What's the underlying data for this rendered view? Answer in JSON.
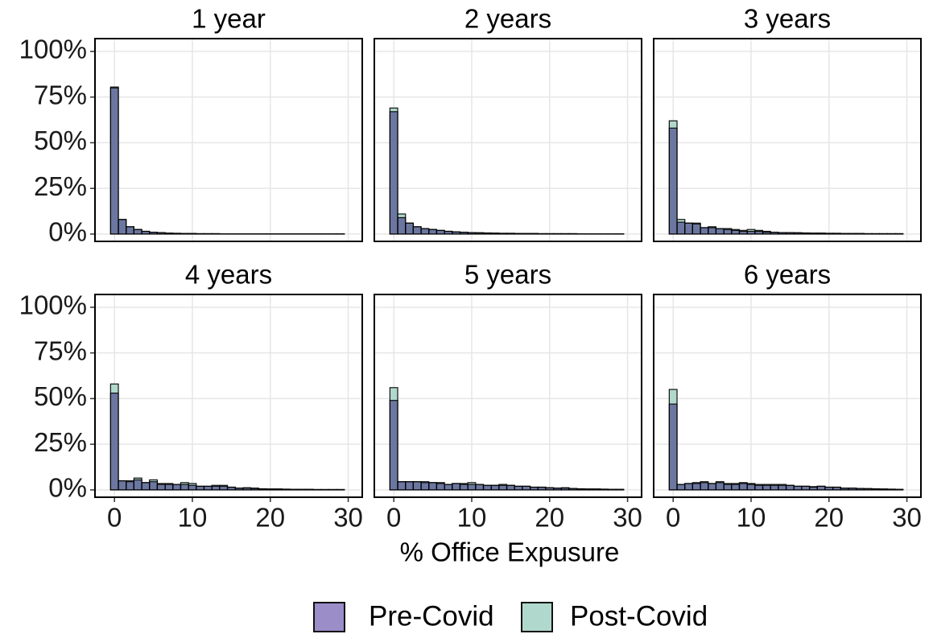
{
  "chart_data": [
    {
      "type": "histogram",
      "title": "1 year",
      "bins": [
        -0.5,
        0.5,
        1.5,
        2.5,
        3.5,
        4.5,
        5.5,
        6.5,
        7.5,
        8.5,
        9.5,
        10.5,
        11.5,
        12.5,
        13.5,
        14.5,
        15.5,
        16.5,
        17.5,
        18.5,
        19.5,
        20.5,
        21.5,
        22.5,
        23.5,
        24.5,
        25.5,
        26.5,
        27.5,
        28.5,
        29.5
      ],
      "series": [
        {
          "name": "Pre-Covid",
          "color": "#9b8dc8",
          "values": [
            80,
            8,
            4,
            2.5,
            1.5,
            1,
            0.8,
            0.5,
            0.4,
            0.3,
            0.3,
            0.2,
            0.2,
            0.2,
            0.1,
            0.1,
            0.1,
            0.1,
            0.1,
            0.1,
            0.1,
            0.1,
            0.1,
            0.1,
            0.1,
            0.1,
            0.1,
            0.1,
            0.1,
            0.1
          ]
        },
        {
          "name": "Post-Covid",
          "color": "#b0d8cc",
          "values": [
            80.5,
            8,
            4,
            2.5,
            1.5,
            1,
            0.8,
            0.5,
            0.4,
            0.3,
            0.3,
            0.2,
            0.2,
            0.2,
            0.1,
            0.1,
            0.1,
            0.1,
            0.1,
            0.1,
            0.1,
            0.1,
            0.1,
            0.1,
            0.1,
            0.1,
            0.1,
            0.1,
            0.1,
            0.1
          ]
        }
      ],
      "xlim": [
        -2.5,
        31.8
      ],
      "ylim": [
        -4,
        107
      ],
      "xticks": [
        0,
        10,
        20,
        30
      ],
      "yticks": [
        {
          "value": 0,
          "label": "0%"
        },
        {
          "value": 25,
          "label": "25%"
        },
        {
          "value": 50,
          "label": "50%"
        },
        {
          "value": 75,
          "label": "75%"
        },
        {
          "value": 100,
          "label": "100%"
        }
      ],
      "grid": true
    },
    {
      "type": "histogram",
      "title": "2 years",
      "bins": [
        -0.5,
        0.5,
        1.5,
        2.5,
        3.5,
        4.5,
        5.5,
        6.5,
        7.5,
        8.5,
        9.5,
        10.5,
        11.5,
        12.5,
        13.5,
        14.5,
        15.5,
        16.5,
        17.5,
        18.5,
        19.5,
        20.5,
        21.5,
        22.5,
        23.5,
        24.5,
        25.5,
        26.5,
        27.5,
        28.5,
        29.5
      ],
      "series": [
        {
          "name": "Pre-Covid",
          "color": "#9b8dc8",
          "values": [
            67,
            9,
            6,
            4,
            3,
            2.5,
            2,
            1.5,
            1.2,
            1,
            0.8,
            0.7,
            0.6,
            0.5,
            0.4,
            0.4,
            0.3,
            0.3,
            0.3,
            0.2,
            0.2,
            0.2,
            0.2,
            0.2,
            0.1,
            0.1,
            0.1,
            0.1,
            0.1,
            0.1
          ]
        },
        {
          "name": "Post-Covid",
          "color": "#b0d8cc",
          "values": [
            69,
            11,
            6,
            4,
            3,
            2.5,
            2,
            1.5,
            1.2,
            1,
            0.8,
            0.7,
            0.6,
            0.5,
            0.4,
            0.4,
            0.3,
            0.3,
            0.3,
            0.2,
            0.2,
            0.2,
            0.2,
            0.2,
            0.1,
            0.1,
            0.1,
            0.1,
            0.1,
            0.1
          ]
        }
      ],
      "xlim": [
        -2.5,
        31.8
      ],
      "ylim": [
        -4,
        107
      ],
      "xticks": [
        0,
        10,
        20,
        30
      ],
      "yticks": [
        {
          "value": 0,
          "label": "0%"
        },
        {
          "value": 25,
          "label": "25%"
        },
        {
          "value": 50,
          "label": "50%"
        },
        {
          "value": 75,
          "label": "75%"
        },
        {
          "value": 100,
          "label": "100%"
        }
      ],
      "grid": true
    },
    {
      "type": "histogram",
      "title": "3 years",
      "bins": [
        -0.5,
        0.5,
        1.5,
        2.5,
        3.5,
        4.5,
        5.5,
        6.5,
        7.5,
        8.5,
        9.5,
        10.5,
        11.5,
        12.5,
        13.5,
        14.5,
        15.5,
        16.5,
        17.5,
        18.5,
        19.5,
        20.5,
        21.5,
        22.5,
        23.5,
        24.5,
        25.5,
        26.5,
        27.5,
        28.5,
        29.5
      ],
      "series": [
        {
          "name": "Pre-Covid",
          "color": "#9b8dc8",
          "values": [
            58,
            6.5,
            6,
            5.5,
            3.5,
            3.5,
            3,
            2.5,
            2,
            1.5,
            1.5,
            1.5,
            1,
            1,
            0.8,
            0.8,
            0.7,
            0.6,
            0.5,
            0.5,
            0.4,
            0.4,
            0.3,
            0.3,
            0.3,
            0.2,
            0.2,
            0.2,
            0.2,
            0.2
          ]
        },
        {
          "name": "Post-Covid",
          "color": "#b0d8cc",
          "values": [
            62,
            8,
            6,
            6,
            3.5,
            4,
            3,
            3,
            2.5,
            2,
            2.5,
            2,
            1.5,
            1,
            0.8,
            0.8,
            0.7,
            0.6,
            0.5,
            0.5,
            0.4,
            0.4,
            0.3,
            0.3,
            0.3,
            0.2,
            0.2,
            0.2,
            0.2,
            0.2
          ]
        }
      ],
      "xlim": [
        -2.5,
        31.8
      ],
      "ylim": [
        -4,
        107
      ],
      "xticks": [
        0,
        10,
        20,
        30
      ],
      "yticks": [
        {
          "value": 0,
          "label": "0%"
        },
        {
          "value": 25,
          "label": "25%"
        },
        {
          "value": 50,
          "label": "50%"
        },
        {
          "value": 75,
          "label": "75%"
        },
        {
          "value": 100,
          "label": "100%"
        }
      ],
      "grid": true
    },
    {
      "type": "histogram",
      "title": "4 years",
      "bins": [
        -0.5,
        0.5,
        1.5,
        2.5,
        3.5,
        4.5,
        5.5,
        6.5,
        7.5,
        8.5,
        9.5,
        10.5,
        11.5,
        12.5,
        13.5,
        14.5,
        15.5,
        16.5,
        17.5,
        18.5,
        19.5,
        20.5,
        21.5,
        22.5,
        23.5,
        24.5,
        25.5,
        26.5,
        27.5,
        28.5,
        29.5
      ],
      "series": [
        {
          "name": "Pre-Covid",
          "color": "#9b8dc8",
          "values": [
            53,
            5,
            4.5,
            5.5,
            4,
            4.5,
            3,
            3,
            3,
            3,
            2.5,
            2,
            2,
            2,
            2,
            1.5,
            1,
            1,
            0.8,
            0.6,
            0.5,
            0.5,
            0.4,
            0.3,
            0.3,
            0.3,
            0.2,
            0.2,
            0.2,
            0.2
          ]
        },
        {
          "name": "Post-Covid",
          "color": "#b0d8cc",
          "values": [
            58,
            5,
            5,
            6.5,
            4,
            5.5,
            3.5,
            3.5,
            3,
            4,
            3.5,
            2,
            2,
            2.5,
            2.5,
            1.5,
            1,
            1.2,
            1,
            0.6,
            0.5,
            0.5,
            0.4,
            0.3,
            0.3,
            0.3,
            0.2,
            0.2,
            0.2,
            0.2
          ]
        }
      ],
      "xlim": [
        -2.5,
        31.8
      ],
      "ylim": [
        -4,
        107
      ],
      "xticks": [
        0,
        10,
        20,
        30
      ],
      "yticks": [
        {
          "value": 0,
          "label": "0%"
        },
        {
          "value": 25,
          "label": "25%"
        },
        {
          "value": 50,
          "label": "50%"
        },
        {
          "value": 75,
          "label": "75%"
        },
        {
          "value": 100,
          "label": "100%"
        }
      ],
      "grid": true
    },
    {
      "type": "histogram",
      "title": "5 years",
      "bins": [
        -0.5,
        0.5,
        1.5,
        2.5,
        3.5,
        4.5,
        5.5,
        6.5,
        7.5,
        8.5,
        9.5,
        10.5,
        11.5,
        12.5,
        13.5,
        14.5,
        15.5,
        16.5,
        17.5,
        18.5,
        19.5,
        20.5,
        21.5,
        22.5,
        23.5,
        24.5,
        25.5,
        26.5,
        27.5,
        28.5,
        29.5
      ],
      "series": [
        {
          "name": "Pre-Covid",
          "color": "#9b8dc8",
          "values": [
            49,
            4.5,
            4.5,
            4.5,
            4,
            4,
            3.5,
            3,
            3.5,
            3,
            3,
            3,
            2.5,
            2.5,
            2.5,
            2.5,
            2,
            2,
            1.5,
            1.5,
            1.2,
            1,
            1,
            0.8,
            0.6,
            0.5,
            0.5,
            0.4,
            0.3,
            0.3
          ]
        },
        {
          "name": "Post-Covid",
          "color": "#b0d8cc",
          "values": [
            56,
            4.5,
            4.5,
            4.5,
            4.5,
            4,
            4,
            3,
            3.5,
            3.5,
            4,
            3,
            2.5,
            2.5,
            3,
            2.5,
            2,
            2,
            1.5,
            1.5,
            1.2,
            1,
            1.2,
            0.8,
            0.6,
            0.5,
            0.5,
            0.4,
            0.3,
            0.3
          ]
        }
      ],
      "xlim": [
        -2.5,
        31.8
      ],
      "ylim": [
        -4,
        107
      ],
      "xticks": [
        0,
        10,
        20,
        30
      ],
      "yticks": [
        {
          "value": 0,
          "label": "0%"
        },
        {
          "value": 25,
          "label": "25%"
        },
        {
          "value": 50,
          "label": "50%"
        },
        {
          "value": 75,
          "label": "75%"
        },
        {
          "value": 100,
          "label": "100%"
        }
      ],
      "grid": true
    },
    {
      "type": "histogram",
      "title": "6 years",
      "bins": [
        -0.5,
        0.5,
        1.5,
        2.5,
        3.5,
        4.5,
        5.5,
        6.5,
        7.5,
        8.5,
        9.5,
        10.5,
        11.5,
        12.5,
        13.5,
        14.5,
        15.5,
        16.5,
        17.5,
        18.5,
        19.5,
        20.5,
        21.5,
        22.5,
        23.5,
        24.5,
        25.5,
        26.5,
        27.5,
        28.5,
        29.5
      ],
      "series": [
        {
          "name": "Pre-Covid",
          "color": "#9b8dc8",
          "values": [
            47,
            3,
            3.5,
            3.5,
            4,
            3.5,
            4,
            3,
            3,
            3.5,
            3,
            2.5,
            2.5,
            2.5,
            2.5,
            2.5,
            2,
            2,
            1.5,
            2,
            1.5,
            1.5,
            1,
            1,
            0.8,
            0.7,
            0.6,
            0.5,
            0.4,
            0.3
          ]
        },
        {
          "name": "Post-Covid",
          "color": "#b0d8cc",
          "values": [
            55,
            3,
            3.5,
            4,
            4.5,
            3.5,
            4.5,
            3.5,
            3.5,
            4,
            3.5,
            3,
            3,
            3,
            3,
            2.5,
            2,
            2,
            1.8,
            2,
            1.5,
            1.5,
            1,
            1,
            0.8,
            0.7,
            0.6,
            0.5,
            0.4,
            0.3
          ]
        }
      ],
      "xlim": [
        -2.5,
        31.8
      ],
      "ylim": [
        -4,
        107
      ],
      "xticks": [
        0,
        10,
        20,
        30
      ],
      "yticks": [
        {
          "value": 0,
          "label": "0%"
        },
        {
          "value": 25,
          "label": "25%"
        },
        {
          "value": 50,
          "label": "50%"
        },
        {
          "value": 75,
          "label": "75%"
        },
        {
          "value": 100,
          "label": "100%"
        }
      ],
      "grid": true
    }
  ],
  "x_label": "% Office Expusure"
}
